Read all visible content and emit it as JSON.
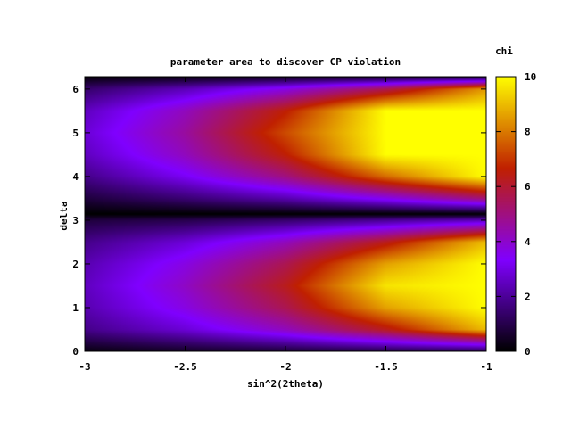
{
  "chart_data": {
    "type": "heatmap",
    "title": "parameter area to discover CP violation",
    "xlabel": "sin^2(2theta)",
    "ylabel": "delta",
    "colorbar_label": "chi",
    "xlim": [
      -3,
      -1
    ],
    "ylim": [
      0,
      6.283
    ],
    "zlim": [
      0,
      10
    ],
    "x_ticks": [
      -3,
      -2.5,
      -2,
      -1.5,
      -1
    ],
    "x_tick_labels": [
      "-3",
      "-2.5",
      "-2",
      "-1.5",
      "-1"
    ],
    "y_ticks": [
      0,
      1,
      2,
      3,
      4,
      5,
      6
    ],
    "y_tick_labels": [
      "0",
      "1",
      "2",
      "3",
      "4",
      "5",
      "6"
    ],
    "colorbar_ticks": [
      0,
      2,
      4,
      6,
      8,
      10
    ],
    "colorbar_tick_labels": [
      "0",
      "2",
      "4",
      "6",
      "8",
      "10"
    ],
    "colormap": "black-purple-red-yellow (gnuplot pm3d)",
    "colormap_stops": [
      "#000000",
      "#8000ff",
      "#c02000",
      "#ffff00"
    ],
    "x_grid": [
      -3,
      -2.5,
      -2,
      -1.5,
      -1
    ],
    "y_grid": [
      0,
      0.5,
      1.0,
      1.5,
      2.0,
      2.5,
      3.0,
      3.14,
      3.5,
      4.0,
      4.5,
      5.0,
      5.5,
      6.0,
      6.28
    ],
    "z": [
      [
        0.2,
        0.5,
        0.7,
        0.9,
        1.0
      ],
      [
        1.8,
        2.8,
        4.2,
        6.3,
        9.0
      ],
      [
        2.3,
        3.7,
        5.6,
        8.6,
        10.0
      ],
      [
        2.5,
        4.1,
        6.3,
        9.6,
        10.0
      ],
      [
        2.3,
        3.7,
        5.6,
        8.6,
        10.0
      ],
      [
        1.8,
        2.8,
        4.2,
        6.3,
        9.0
      ],
      [
        0.8,
        1.0,
        1.4,
        1.9,
        2.4
      ],
      [
        0.0,
        0.0,
        0.0,
        0.0,
        0.0
      ],
      [
        0.8,
        1.5,
        2.3,
        3.6,
        5.2
      ],
      [
        1.8,
        3.2,
        5.0,
        7.8,
        10.0
      ],
      [
        2.5,
        4.2,
        6.6,
        10.0,
        10.0
      ],
      [
        2.8,
        4.6,
        7.3,
        10.0,
        10.0
      ],
      [
        2.5,
        4.2,
        6.6,
        10.0,
        10.0
      ],
      [
        1.4,
        2.4,
        3.7,
        5.6,
        8.5
      ],
      [
        0.1,
        0.2,
        0.3,
        0.4,
        0.5
      ]
    ]
  }
}
